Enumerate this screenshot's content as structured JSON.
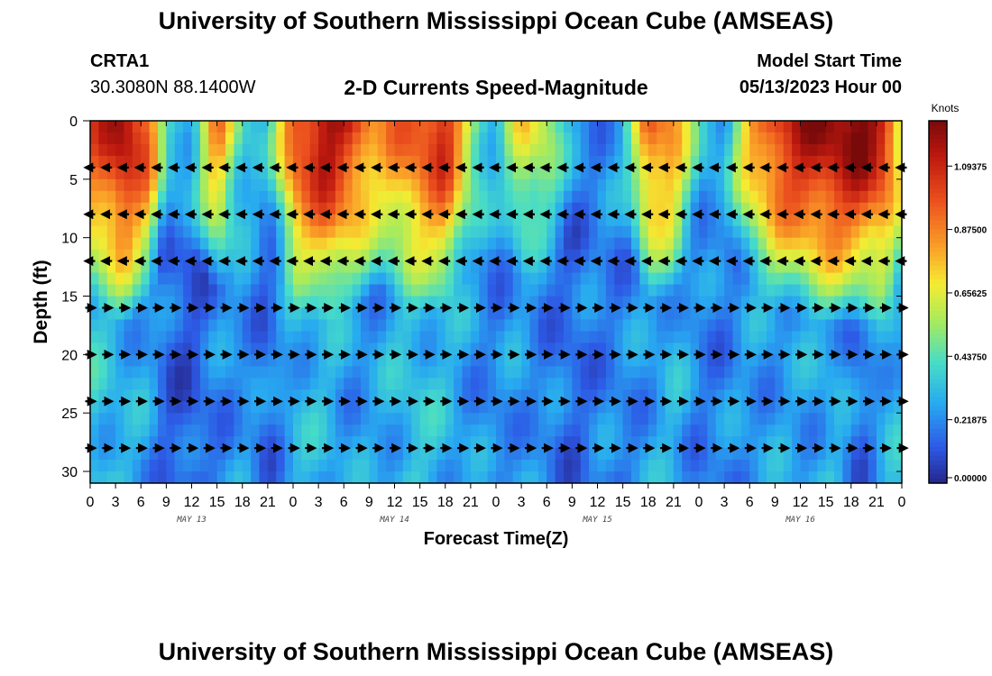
{
  "header": {
    "title": "University of Southern Mississippi Ocean Cube (AMSEAS)",
    "station": "CRTA1",
    "coordinates": "30.3080N  88.1400W",
    "subtitle": "2-D Currents Speed-Magnitude",
    "model_start_label": "Model Start Time",
    "model_start_value": "05/13/2023 Hour 00"
  },
  "footer": {
    "title": "University of Southern Mississippi Ocean Cube (AMSEAS)"
  },
  "chart_data": {
    "type": "heatmap",
    "title": "2-D Currents Speed-Magnitude",
    "xlabel": "Forecast Time(Z)",
    "ylabel": "Depth (ft)",
    "colorbar_label": "Knots",
    "colorbar_ticks": [
      "1.09375",
      "0.87500",
      "0.65625",
      "0.43750",
      "0.21875",
      "0.00000"
    ],
    "colorbar_values": [
      1.09375,
      0.875,
      0.65625,
      0.4375,
      0.21875,
      0.0
    ],
    "zlim": [
      0,
      1.25
    ],
    "xlim": [
      0,
      96
    ],
    "ylim": [
      0,
      31
    ],
    "x_ticks": [
      0,
      3,
      6,
      9,
      12,
      15,
      18,
      21,
      24,
      27,
      30,
      33,
      36,
      39,
      42,
      45,
      48,
      51,
      54,
      57,
      60,
      63,
      66,
      69,
      72,
      75,
      78,
      81,
      84,
      87,
      90,
      93,
      96
    ],
    "x_tick_labels": [
      "0",
      "3",
      "6",
      "9",
      "12",
      "15",
      "18",
      "21",
      "0",
      "3",
      "6",
      "9",
      "12",
      "15",
      "18",
      "21",
      "0",
      "3",
      "6",
      "9",
      "12",
      "15",
      "18",
      "21",
      "0",
      "3",
      "6",
      "9",
      "12",
      "15",
      "18",
      "21",
      "0"
    ],
    "day_labels": [
      {
        "hour": 12,
        "label": "MAY 13"
      },
      {
        "hour": 36,
        "label": "MAY 14"
      },
      {
        "hour": 60,
        "label": "MAY 15"
      },
      {
        "hour": 84,
        "label": "MAY 16"
      }
    ],
    "y_ticks": [
      0,
      5,
      10,
      15,
      20,
      25,
      30
    ],
    "y_tick_labels": [
      "0",
      "5",
      "10",
      "15",
      "20",
      "25",
      "30"
    ],
    "vector_depths_ft": [
      4,
      8,
      12,
      16,
      20,
      24,
      28
    ],
    "vector_hours": [
      0,
      2,
      4,
      6,
      8,
      10,
      12,
      14,
      16,
      18,
      20,
      22,
      24,
      26,
      28,
      30,
      32,
      34,
      36,
      38,
      40,
      42,
      44,
      46,
      48,
      50,
      52,
      54,
      56,
      58,
      60,
      62,
      64,
      66,
      68,
      70,
      72,
      74,
      76,
      78,
      80,
      82,
      84,
      86,
      88,
      90,
      92,
      94,
      96
    ],
    "vector_direction_by_depth": {
      "4": "west",
      "8": "west",
      "12": "west",
      "16": "east",
      "20": "east",
      "24": "east",
      "28": "east"
    },
    "speed_profile_by_hour": [
      {
        "hour": 0,
        "surface": 0.95,
        "bottom": 0.35
      },
      {
        "hour": 4,
        "surface": 1.2,
        "bottom": 0.3
      },
      {
        "hour": 7,
        "surface": 0.95,
        "bottom": 0.25
      },
      {
        "hour": 9,
        "surface": 0.4,
        "bottom": 0.15
      },
      {
        "hour": 12,
        "surface": 0.35,
        "bottom": 0.12
      },
      {
        "hour": 15,
        "surface": 0.9,
        "bottom": 0.2
      },
      {
        "hour": 18,
        "surface": 0.4,
        "bottom": 0.25
      },
      {
        "hour": 21,
        "surface": 0.3,
        "bottom": 0.15
      },
      {
        "hour": 24,
        "surface": 1.0,
        "bottom": 0.3
      },
      {
        "hour": 28,
        "surface": 1.2,
        "bottom": 0.3
      },
      {
        "hour": 31,
        "surface": 1.05,
        "bottom": 0.25
      },
      {
        "hour": 34,
        "surface": 0.8,
        "bottom": 0.25
      },
      {
        "hour": 38,
        "surface": 0.95,
        "bottom": 0.35
      },
      {
        "hour": 42,
        "surface": 1.1,
        "bottom": 0.3
      },
      {
        "hour": 45,
        "surface": 0.6,
        "bottom": 0.25
      },
      {
        "hour": 48,
        "surface": 0.3,
        "bottom": 0.2
      },
      {
        "hour": 51,
        "surface": 0.7,
        "bottom": 0.25
      },
      {
        "hour": 54,
        "surface": 0.6,
        "bottom": 0.2
      },
      {
        "hour": 57,
        "surface": 0.25,
        "bottom": 0.15
      },
      {
        "hour": 60,
        "surface": 0.2,
        "bottom": 0.2
      },
      {
        "hour": 63,
        "surface": 0.3,
        "bottom": 0.2
      },
      {
        "hour": 66,
        "surface": 0.95,
        "bottom": 0.25
      },
      {
        "hour": 69,
        "surface": 0.85,
        "bottom": 0.3
      },
      {
        "hour": 72,
        "surface": 0.35,
        "bottom": 0.2
      },
      {
        "hour": 75,
        "surface": 0.3,
        "bottom": 0.2
      },
      {
        "hour": 78,
        "surface": 0.8,
        "bottom": 0.25
      },
      {
        "hour": 81,
        "surface": 1.05,
        "bottom": 0.25
      },
      {
        "hour": 84,
        "surface": 1.15,
        "bottom": 0.25
      },
      {
        "hour": 88,
        "surface": 1.2,
        "bottom": 0.3
      },
      {
        "hour": 91,
        "surface": 1.25,
        "bottom": 0.15
      },
      {
        "hour": 94,
        "surface": 1.1,
        "bottom": 0.3
      },
      {
        "hour": 96,
        "surface": 0.7,
        "bottom": 0.3
      }
    ]
  }
}
